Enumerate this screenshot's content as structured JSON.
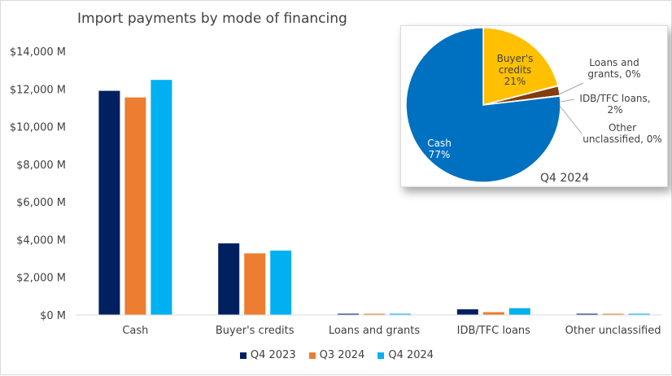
{
  "chart_data": [
    {
      "type": "bar",
      "title": "Import payments by mode of financing",
      "categories": [
        "Cash",
        "Buyer's credits",
        "Loans and grants",
        "IDB/TFC loans",
        "Other unclassified"
      ],
      "series": [
        {
          "name": "Q4 2023",
          "color": "#002060",
          "values": [
            11900,
            3800,
            50,
            300,
            40
          ]
        },
        {
          "name": "Q3 2024",
          "color": "#ED7D31",
          "values": [
            11550,
            3270,
            40,
            150,
            30
          ]
        },
        {
          "name": "Q4 2024",
          "color": "#00B0F0",
          "values": [
            12480,
            3420,
            45,
            360,
            35
          ]
        }
      ],
      "ylim": [
        0,
        14000
      ],
      "yticks": [
        0,
        2000,
        4000,
        6000,
        8000,
        10000,
        12000,
        14000
      ],
      "ytick_labels": [
        "$0 M",
        "$2,000 M",
        "$4,000 M",
        "$6,000 M",
        "$8,000 M",
        "$10,000 M",
        "$12,000 M",
        "$14,000 M"
      ],
      "grid": false,
      "legend": "bottom"
    },
    {
      "type": "pie",
      "title": "Q4 2024",
      "slices": [
        {
          "label": "Cash",
          "value": 77,
          "display": "77%",
          "color": "#0070C0"
        },
        {
          "label": "Buyer's credits",
          "value": 21,
          "display": "21%",
          "color": "#FFC000"
        },
        {
          "label": "Loans and grants,",
          "value": 0.1,
          "display": "0%",
          "color": "#A5A5A5"
        },
        {
          "label": "IDB/TFC loans,",
          "value": 2,
          "display": "2%",
          "color": "#843C0C"
        },
        {
          "label": "Other unclassified,",
          "value": 0.1,
          "display": "0%",
          "color": "#7F7F7F"
        }
      ]
    }
  ]
}
